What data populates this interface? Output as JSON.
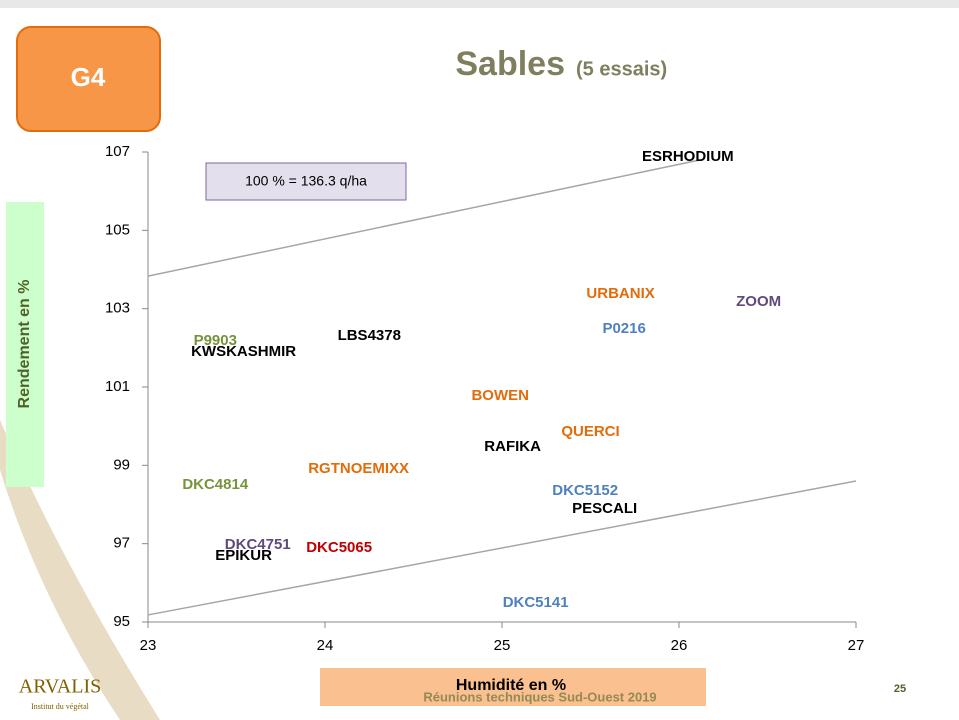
{
  "slide": {
    "badge": "G4",
    "title": "Sables",
    "title_note": "(5 essais)",
    "footer": "Réunions techniques Sud-Ouest 2019",
    "page_number": "25",
    "logo": "ARVALIS",
    "logo_sub": "Institut du végétal"
  },
  "chart_data": {
    "type": "scatter",
    "xlabel": "Humidité en %",
    "ylabel": "Rendement en %",
    "annotation": "100 % = 136.3 q/ha",
    "xlim": [
      23,
      27
    ],
    "xticks": [
      23,
      24,
      25,
      26,
      27
    ],
    "ylim": [
      95,
      107
    ],
    "yticks": [
      95,
      97,
      99,
      101,
      103,
      105,
      107
    ],
    "labels": [
      "ESRHODIUM",
      "URBANIX",
      "ZOOM",
      "P0216",
      "P9903",
      "KWSKASHMIR",
      "LBS4378",
      "BOWEN",
      "QUERCI",
      "RAFIKA",
      "RGTNOEMIXX",
      "DKC4814",
      "DKC5152",
      "PESCALI",
      "DKC4751",
      "EPIKUR",
      "DKC5065",
      "DKC5141"
    ],
    "x": [
      26.05,
      25.67,
      26.45,
      25.69,
      23.38,
      23.54,
      24.25,
      24.99,
      25.5,
      25.06,
      24.19,
      23.38,
      25.47,
      25.58,
      23.62,
      23.54,
      24.08,
      25.19
    ],
    "values": [
      106.87,
      103.37,
      103.17,
      102.48,
      102.17,
      101.89,
      102.3,
      100.77,
      99.85,
      99.47,
      98.91,
      98.5,
      98.35,
      97.89,
      96.97,
      96.69,
      96.89,
      95.49
    ],
    "colors": [
      "#000000",
      "#e36c0a",
      "#604a7b",
      "#4f81bd",
      "#77933c",
      "#000000",
      "#000000",
      "#e36c0a",
      "#e36c0a",
      "#000000",
      "#e36c0a",
      "#77933c",
      "#4f81bd",
      "#000000",
      "#604a7b",
      "#000000",
      "#c00000",
      "#4f81bd"
    ],
    "trend_lines": [
      {
        "x": [
          23,
          26.12
        ],
        "values": [
          103.83,
          106.8
        ]
      },
      {
        "x": [
          23,
          27
        ],
        "values": [
          95.18,
          98.6
        ]
      }
    ],
    "trend_color": "#a6a6a6"
  }
}
